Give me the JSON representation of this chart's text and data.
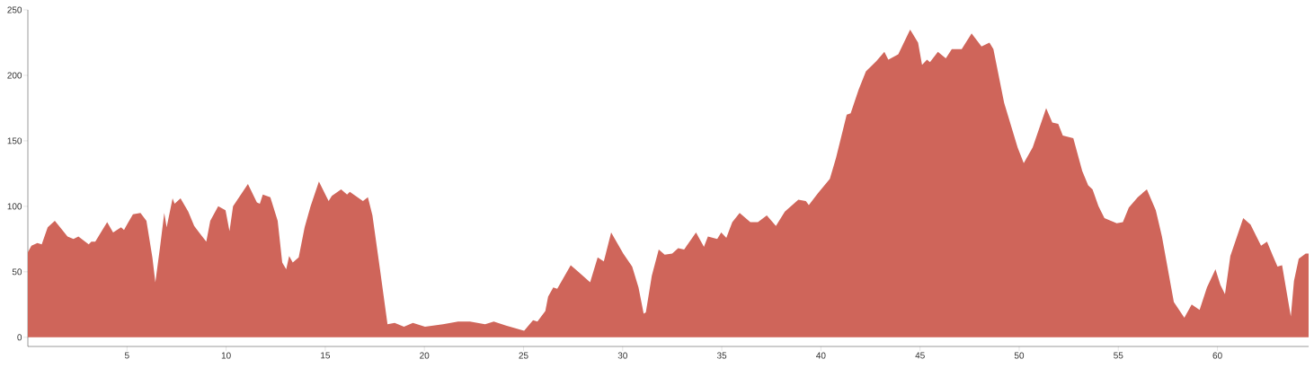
{
  "chart_data": {
    "type": "area",
    "color": "#cf655a",
    "xlim": [
      0,
      64.6
    ],
    "ylim": [
      -7,
      250
    ],
    "xticks": [
      5,
      10,
      15,
      20,
      25,
      30,
      35,
      40,
      45,
      50,
      55,
      60
    ],
    "yticks": [
      0,
      50,
      100,
      150,
      200,
      250
    ],
    "grid": false,
    "x": [
      0,
      0.18,
      0.48,
      0.7,
      1.0,
      1.36,
      2.0,
      2.3,
      2.55,
      3.07,
      3.2,
      3.4,
      4.0,
      4.3,
      4.7,
      4.85,
      5.07,
      5.3,
      5.68,
      5.98,
      6.28,
      6.43,
      6.66,
      6.88,
      7.0,
      7.3,
      7.4,
      7.7,
      8.09,
      8.39,
      8.69,
      9.0,
      9.2,
      9.6,
      9.97,
      10.17,
      10.35,
      11.1,
      11.55,
      11.7,
      11.85,
      12.23,
      12.6,
      12.83,
      13.03,
      13.18,
      13.36,
      13.66,
      13.96,
      14.26,
      14.68,
      15.17,
      15.33,
      15.8,
      16.1,
      16.24,
      16.9,
      17.15,
      17.38,
      17.76,
      18.14,
      18.5,
      18.97,
      19.42,
      20.03,
      20.94,
      21.7,
      22.3,
      23.06,
      23.5,
      24.12,
      25.03,
      25.48,
      25.7,
      26.1,
      26.24,
      26.5,
      26.7,
      27.38,
      27.76,
      28.36,
      28.74,
      29.05,
      29.42,
      30.03,
      30.48,
      30.8,
      31.06,
      31.17,
      31.47,
      31.82,
      32.12,
      32.5,
      32.8,
      33.1,
      33.7,
      34.1,
      34.3,
      34.77,
      34.97,
      35.23,
      35.53,
      35.9,
      36.44,
      36.82,
      37.27,
      37.73,
      38.18,
      38.86,
      39.24,
      39.39,
      39.85,
      40.45,
      40.76,
      41.3,
      41.5,
      41.9,
      42.27,
      42.8,
      43.2,
      43.4,
      43.9,
      44.5,
      44.9,
      45.1,
      45.35,
      45.5,
      45.9,
      46.3,
      46.6,
      47.1,
      47.6,
      48.1,
      48.5,
      48.7,
      49.24,
      49.92,
      50.23,
      50.68,
      51.36,
      51.67,
      51.97,
      52.2,
      52.73,
      53.18,
      53.48,
      53.7,
      54.0,
      54.3,
      54.92,
      55.23,
      55.53,
      55.98,
      56.44,
      56.89,
      57.2,
      57.8,
      58.33,
      58.7,
      59.1,
      59.47,
      59.9,
      60.15,
      60.38,
      60.65,
      61.3,
      61.67,
      62.2,
      62.5,
      62.8,
      63.03,
      63.26,
      63.7,
      63.86,
      64.1,
      64.45,
      64.6
    ],
    "values": [
      65,
      70,
      72,
      71,
      84,
      89,
      77,
      75,
      77,
      71,
      73,
      73,
      88,
      80,
      84,
      82,
      88,
      94,
      95,
      89,
      61,
      42,
      68,
      95,
      84,
      106,
      102,
      106,
      96,
      85,
      79,
      73,
      89,
      100,
      97,
      81,
      100,
      117,
      103,
      102,
      109,
      107,
      89,
      57,
      52,
      62,
      57,
      61,
      84,
      100,
      119,
      104,
      108,
      113,
      109,
      111,
      104,
      107,
      93,
      52,
      10,
      11,
      8,
      11,
      8,
      10,
      12,
      12,
      10,
      12,
      9,
      5,
      13,
      12,
      20,
      31,
      38,
      37,
      55,
      50,
      42,
      61,
      58,
      80,
      64,
      54,
      38,
      18,
      19,
      47,
      67,
      63,
      64,
      68,
      67,
      80,
      69,
      77,
      75,
      80,
      76,
      88,
      95,
      88,
      88,
      93,
      85,
      96,
      105,
      104,
      101,
      110,
      121,
      137,
      170,
      171,
      189,
      203,
      211,
      218,
      212,
      216,
      235,
      225,
      208,
      212,
      210,
      218,
      213,
      220,
      220,
      232,
      222,
      225,
      220,
      179,
      145,
      133,
      145,
      175,
      164,
      163,
      154,
      152,
      127,
      116,
      113,
      100,
      91,
      87,
      88,
      99,
      107,
      113,
      97,
      77,
      27,
      15,
      25,
      21,
      38,
      52,
      40,
      33,
      62,
      91,
      86,
      70,
      73,
      62,
      54,
      55,
      16,
      43,
      60,
      64,
      64
    ]
  }
}
